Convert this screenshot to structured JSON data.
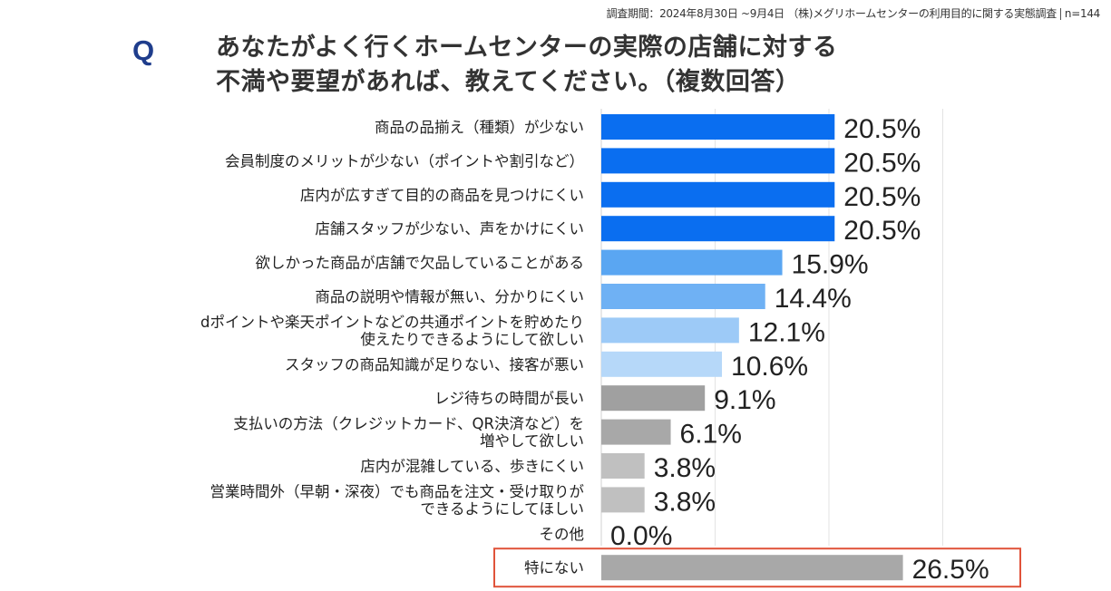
{
  "survey_note": {
    "text": "調査期間：2024年8月30日 ~9月4日 （株)メグリホームセンターの利用目的に関する実態調査",
    "n": "n=144"
  },
  "question": {
    "mark": "Q",
    "line1": "あなたがよく行くホームセンターの実際の店舗に対する",
    "line2": "不満や要望があれば、教えてください。（複数回答）"
  },
  "chart_data": {
    "type": "bar",
    "orientation": "horizontal",
    "title": "",
    "xlabel": "",
    "ylabel": "",
    "xlim": [
      0,
      30
    ],
    "unit": "%",
    "grid": true,
    "categories": [
      [
        "商品の品揃え（種類）が少ない"
      ],
      [
        "会員制度のメリットが少ない（ポイントや割引など）"
      ],
      [
        "店内が広すぎて目的の商品を見つけにくい"
      ],
      [
        "店舗スタッフが少ない、声をかけにくい"
      ],
      [
        "欲しかった商品が店舗で欠品していることがある"
      ],
      [
        "商品の説明や情報が無い、分かりにくい"
      ],
      [
        "dポイントや楽天ポイントなどの共通ポイントを貯めたり",
        "使えたりできるようにして欲しい"
      ],
      [
        "スタッフの商品知識が足りない、接客が悪い"
      ],
      [
        "レジ待ちの時間が長い"
      ],
      [
        "支払いの方法（クレジットカード、QR決済など）を",
        "増やして欲しい"
      ],
      [
        "店内が混雑している、歩きにくい"
      ],
      [
        "営業時間外（早朝・深夜）でも商品を注文・受け取りが",
        "できるようにしてほしい"
      ],
      [
        "その他"
      ],
      [
        "特にない"
      ]
    ],
    "values": [
      20.5,
      20.5,
      20.5,
      20.5,
      15.9,
      14.4,
      12.1,
      10.6,
      9.1,
      6.1,
      3.8,
      3.8,
      0.0,
      26.5
    ],
    "value_labels": [
      "20.5%",
      "20.5%",
      "20.5%",
      "20.5%",
      "15.9%",
      "14.4%",
      "12.1%",
      "10.6%",
      "9.1%",
      "6.1%",
      "3.8%",
      "3.8%",
      "0.0%",
      "26.5%"
    ],
    "bar_colors": [
      "#0a6ef0",
      "#0a6ef0",
      "#0a6ef0",
      "#0a6ef0",
      "#5aa6f2",
      "#6fb1f4",
      "#9dcaf7",
      "#b6d8f9",
      "#a0a0a0",
      "#a8a8a8",
      "#c0c0c0",
      "#c0c0c0",
      "#c0c0c0",
      "#a8a8a8"
    ],
    "highlight_color": "#e0533a"
  }
}
